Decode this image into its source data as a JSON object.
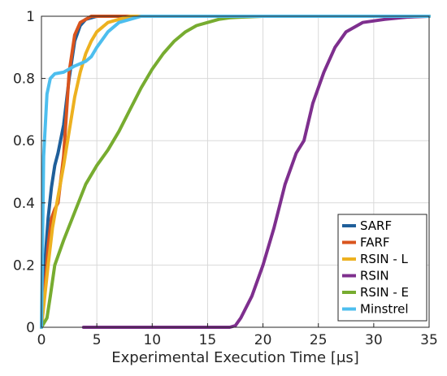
{
  "chart_data": {
    "type": "line",
    "title": "",
    "xlabel": "Experimental Execution Time [μs]",
    "ylabel": "",
    "xlim": [
      0,
      35
    ],
    "ylim": [
      0,
      1
    ],
    "xticks": [
      0,
      5,
      10,
      15,
      20,
      25,
      30,
      35
    ],
    "yticks": [
      0,
      0.2,
      0.4,
      0.6,
      0.8,
      1
    ],
    "xtick_labels": [
      "0",
      "5",
      "10",
      "15",
      "20",
      "25",
      "30",
      "35"
    ],
    "ytick_labels": [
      "0",
      "0.2",
      "0.4",
      "0.6",
      "0.8",
      "1"
    ],
    "grid": true,
    "legend_position": "bottom-right",
    "series": [
      {
        "name": "SARF",
        "color": "#1f5f9a",
        "x": [
          0,
          0.3,
          0.6,
          0.9,
          1.2,
          1.5,
          2.0,
          2.5,
          3.0,
          3.5,
          4.0,
          4.5,
          5.0,
          6.0,
          7.0,
          35
        ],
        "y": [
          0,
          0.2,
          0.35,
          0.45,
          0.52,
          0.56,
          0.65,
          0.8,
          0.92,
          0.97,
          0.99,
          0.995,
          1.0,
          1.0,
          1.0,
          1.0
        ]
      },
      {
        "name": "FARF",
        "color": "#d9541e",
        "x": [
          0,
          0.3,
          0.6,
          0.9,
          1.2,
          1.5,
          2.0,
          2.5,
          3.0,
          3.5,
          4.0,
          4.5,
          5.0,
          6.0,
          35
        ],
        "y": [
          0,
          0.12,
          0.26,
          0.35,
          0.38,
          0.4,
          0.55,
          0.82,
          0.94,
          0.98,
          0.99,
          1.0,
          1.0,
          1.0,
          1.0
        ]
      },
      {
        "name": "RSIN - L",
        "color": "#edb120",
        "x": [
          0,
          0.3,
          0.6,
          1.0,
          1.5,
          2.0,
          2.5,
          3.0,
          3.5,
          4.0,
          4.5,
          5.0,
          6.0,
          7.0,
          8.0,
          10.0,
          35
        ],
        "y": [
          0,
          0.1,
          0.2,
          0.32,
          0.42,
          0.52,
          0.63,
          0.74,
          0.82,
          0.88,
          0.92,
          0.95,
          0.98,
          0.99,
          1.0,
          1.0,
          1.0
        ]
      },
      {
        "name": "RSIN",
        "color": "#7e2f8e",
        "x": [
          3.8,
          17.0,
          17.5,
          18.0,
          19.0,
          20.0,
          21.0,
          22.0,
          23.0,
          23.7,
          24.5,
          25.5,
          26.5,
          27.5,
          29.0,
          31.0,
          33.0,
          35.0
        ],
        "y": [
          0,
          0,
          0.005,
          0.03,
          0.1,
          0.2,
          0.32,
          0.46,
          0.56,
          0.6,
          0.72,
          0.82,
          0.9,
          0.95,
          0.98,
          0.99,
          0.997,
          1.0
        ]
      },
      {
        "name": "RSIN - E",
        "color": "#77ac30",
        "x": [
          0,
          0.5,
          0.8,
          1.2,
          2.0,
          3.0,
          4.0,
          5.0,
          6.0,
          7.0,
          8.0,
          9.0,
          10.0,
          11.0,
          12.0,
          13.0,
          14.0,
          15.0,
          16.0,
          17.0,
          18.0,
          20.0,
          22.0,
          25.0,
          35.0
        ],
        "y": [
          0,
          0.03,
          0.1,
          0.2,
          0.28,
          0.37,
          0.46,
          0.52,
          0.57,
          0.63,
          0.7,
          0.77,
          0.83,
          0.88,
          0.92,
          0.95,
          0.97,
          0.98,
          0.99,
          0.995,
          0.997,
          1.0,
          1.0,
          1.0,
          1.0
        ]
      },
      {
        "name": "Minstrel",
        "color": "#4dbeee",
        "x": [
          0,
          0.2,
          0.5,
          0.8,
          1.2,
          2.0,
          3.0,
          4.0,
          4.5,
          5.0,
          6.0,
          7.0,
          8.0,
          9.0,
          10.0,
          11.0,
          35.0
        ],
        "y": [
          0,
          0.55,
          0.75,
          0.8,
          0.815,
          0.82,
          0.84,
          0.855,
          0.87,
          0.9,
          0.95,
          0.98,
          0.99,
          1.0,
          1.0,
          1.0,
          1.0
        ]
      }
    ]
  }
}
